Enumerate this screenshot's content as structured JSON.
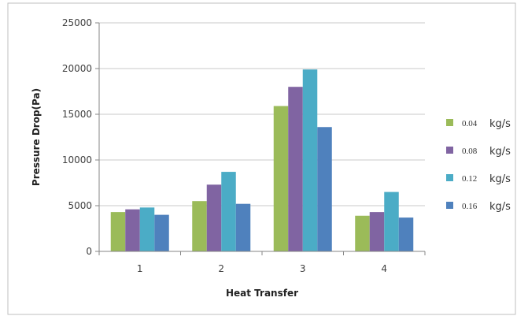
{
  "chart_data": {
    "type": "bar",
    "title": "",
    "xlabel": "Heat Transfer",
    "ylabel": "Pressure Drop(Pa)",
    "categories": [
      "1",
      "2",
      "3",
      "4"
    ],
    "ylim": [
      0,
      25000
    ],
    "yticks": [
      0,
      5000,
      10000,
      15000,
      20000,
      25000
    ],
    "ytick_labels": [
      "0",
      "5000",
      "10000",
      "15000",
      "20000",
      "25000"
    ],
    "grid": true,
    "legend_position": "right",
    "series": [
      {
        "name": "0.04",
        "unit": "kg/s",
        "color": "#9bbb59",
        "values": [
          4300,
          5500,
          15900,
          3900
        ]
      },
      {
        "name": "0.08",
        "unit": "kg/s",
        "color": "#8064a2",
        "values": [
          4600,
          7300,
          18000,
          4300
        ]
      },
      {
        "name": "0.12",
        "unit": "kg/s",
        "color": "#4bacc6",
        "values": [
          4800,
          8700,
          19900,
          6500
        ]
      },
      {
        "name": "0.16",
        "unit": "kg/s",
        "color": "#4f81bd",
        "values": [
          4000,
          5200,
          13600,
          3700
        ]
      }
    ]
  }
}
